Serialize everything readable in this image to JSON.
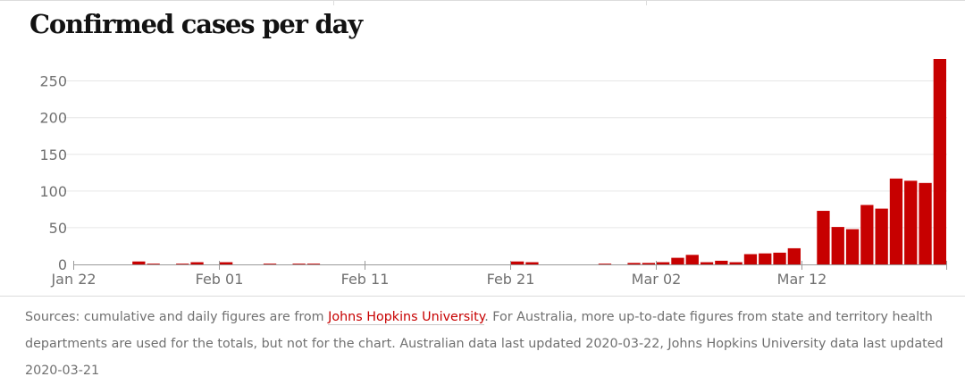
{
  "title": "Confirmed cases per day",
  "source": {
    "prefix": "Sources: cumulative and daily figures are from ",
    "link_text": "Johns Hopkins University",
    "suffix": ". For Australia, more up-to-date figures from state and territory health departments are used for the totals, but not for the chart. Australian data last updated 2020-03-22, Johns Hopkins University data last updated 2020-03-21"
  },
  "colors": {
    "bar": "#c70000",
    "axis": "#999999",
    "grid": "#e6e6e6",
    "text": "#707070"
  },
  "chart_data": {
    "type": "bar",
    "title": "Confirmed cases per day",
    "xlabel": "",
    "ylabel": "",
    "ylim": [
      0,
      280
    ],
    "yticks": [
      0,
      50,
      100,
      150,
      200,
      250
    ],
    "grid": true,
    "x_tick_labels": [
      "Jan 22",
      "Feb 01",
      "Feb 11",
      "Feb 21",
      "Mar 02",
      "Mar 12"
    ],
    "categories": [
      "Jan 22",
      "Jan 23",
      "Jan 24",
      "Jan 25",
      "Jan 26",
      "Jan 27",
      "Jan 28",
      "Jan 29",
      "Jan 30",
      "Jan 31",
      "Feb 01",
      "Feb 02",
      "Feb 03",
      "Feb 04",
      "Feb 05",
      "Feb 06",
      "Feb 07",
      "Feb 08",
      "Feb 09",
      "Feb 10",
      "Feb 11",
      "Feb 12",
      "Feb 13",
      "Feb 14",
      "Feb 15",
      "Feb 16",
      "Feb 17",
      "Feb 18",
      "Feb 19",
      "Feb 20",
      "Feb 21",
      "Feb 22",
      "Feb 23",
      "Feb 24",
      "Feb 25",
      "Feb 26",
      "Feb 27",
      "Feb 28",
      "Feb 29",
      "Mar 01",
      "Mar 02",
      "Mar 03",
      "Mar 04",
      "Mar 05",
      "Mar 06",
      "Mar 07",
      "Mar 08",
      "Mar 09",
      "Mar 10",
      "Mar 11",
      "Mar 12",
      "Mar 13",
      "Mar 14",
      "Mar 15",
      "Mar 16",
      "Mar 17",
      "Mar 18",
      "Mar 19",
      "Mar 20",
      "Mar 21"
    ],
    "values": [
      0,
      0,
      0,
      0,
      4,
      1,
      0,
      1,
      3,
      0,
      3,
      0,
      0,
      1,
      0,
      1,
      1,
      0,
      0,
      0,
      0,
      0,
      0,
      0,
      0,
      0,
      0,
      0,
      0,
      0,
      4,
      3,
      0,
      0,
      0,
      0,
      1,
      0,
      2,
      2,
      3,
      9,
      13,
      3,
      5,
      3,
      14,
      15,
      16,
      22,
      0,
      73,
      51,
      48,
      81,
      76,
      117,
      114,
      111,
      280
    ]
  }
}
